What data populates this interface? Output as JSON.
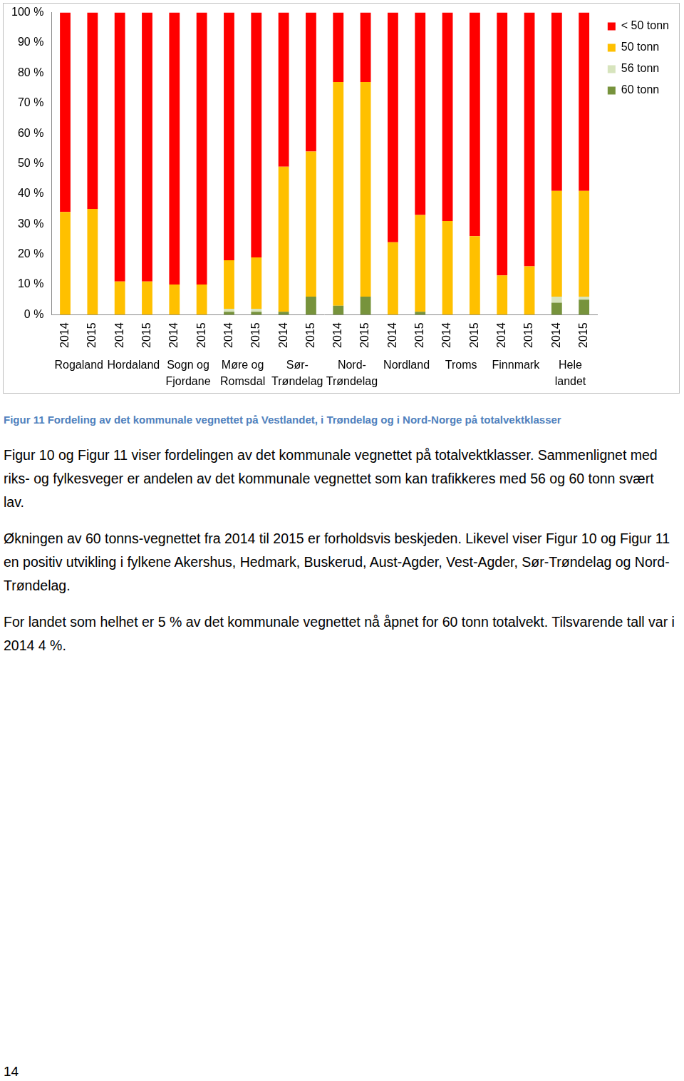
{
  "chart_data": {
    "type": "bar",
    "stacked": true,
    "grid": false,
    "legend": "right",
    "categories": [
      "2014",
      "2015",
      "2014",
      "2015",
      "2014",
      "2015",
      "2014",
      "2015",
      "2014",
      "2015",
      "2014",
      "2015",
      "2014",
      "2015",
      "2014",
      "2015",
      "2014",
      "2015",
      "2014",
      "2015"
    ],
    "category_groups": [
      [
        "Rogaland"
      ],
      [
        "Hordaland"
      ],
      [
        "Sogn og",
        "Fjordane"
      ],
      [
        "Møre og",
        "Romsdal"
      ],
      [
        "Sør-",
        "Trøndelag"
      ],
      [
        "Nord-",
        "Trøndelag"
      ],
      [
        "Nordland"
      ],
      [
        "Troms"
      ],
      [
        "Finnmark"
      ],
      [
        "Hele",
        "landet"
      ]
    ],
    "ylim": [
      0,
      100
    ],
    "yticks": [
      {
        "value": 0,
        "label": "0 %"
      },
      {
        "value": 10,
        "label": "10 %"
      },
      {
        "value": 20,
        "label": "20 %"
      },
      {
        "value": 30,
        "label": "30 %"
      },
      {
        "value": 40,
        "label": "40 %"
      },
      {
        "value": 50,
        "label": "50 %"
      },
      {
        "value": 60,
        "label": "60 %"
      },
      {
        "value": 70,
        "label": "70 %"
      },
      {
        "value": 80,
        "label": "80 %"
      },
      {
        "value": 90,
        "label": "90 %"
      },
      {
        "value": 100,
        "label": "100 %"
      }
    ],
    "series": [
      {
        "name": "60 tonn",
        "color": "#77933c",
        "values": [
          0,
          0,
          0,
          0,
          0,
          0,
          1,
          1,
          1,
          6,
          3,
          6,
          0,
          1,
          0,
          0,
          0,
          0,
          4,
          5
        ]
      },
      {
        "name": "56 tonn",
        "color": "#d7e4bd",
        "values": [
          0,
          0,
          0,
          0,
          0,
          0,
          1,
          1,
          0,
          0,
          0,
          0,
          0,
          0,
          0,
          0,
          0,
          0,
          2,
          1
        ]
      },
      {
        "name": "50 tonn",
        "color": "#ffc000",
        "values": [
          34,
          35,
          11,
          11,
          10,
          10,
          16,
          17,
          48,
          48,
          74,
          71,
          24,
          32,
          31,
          26,
          13,
          16,
          35,
          35
        ]
      },
      {
        "name": "< 50 tonn",
        "color": "#ff0000",
        "values": [
          66,
          65,
          89,
          89,
          90,
          90,
          82,
          81,
          51,
          46,
          23,
          23,
          76,
          67,
          69,
          74,
          87,
          84,
          59,
          59
        ]
      }
    ]
  },
  "document": {
    "caption": "Figur 11 Fordeling av det kommunale vegnettet på Vestlandet, i Trøndelag og i Nord-Norge på totalvektklasser",
    "paragraphs": [
      "Figur 10 og Figur 11 viser fordelingen av det kommunale vegnettet på totalvektklasser. Sammenlignet med riks- og fylkesveger er andelen av det kommunale vegnettet som kan trafikkeres med 56 og 60 tonn svært lav.",
      "Økningen av 60 tonns-vegnettet fra 2014 til 2015 er forholdsvis beskjeden. Likevel viser Figur 10 og Figur 11 en positiv utvikling i fylkene Akershus, Hedmark, Buskerud, Aust-Agder, Vest-Agder, Sør-Trøndelag og Nord-Trøndelag.",
      "For landet som helhet er 5 % av det kommunale vegnettet nå åpnet for 60 tonn totalvekt. Tilsvarende tall var i 2014 4 %."
    ],
    "page_number": "14"
  }
}
